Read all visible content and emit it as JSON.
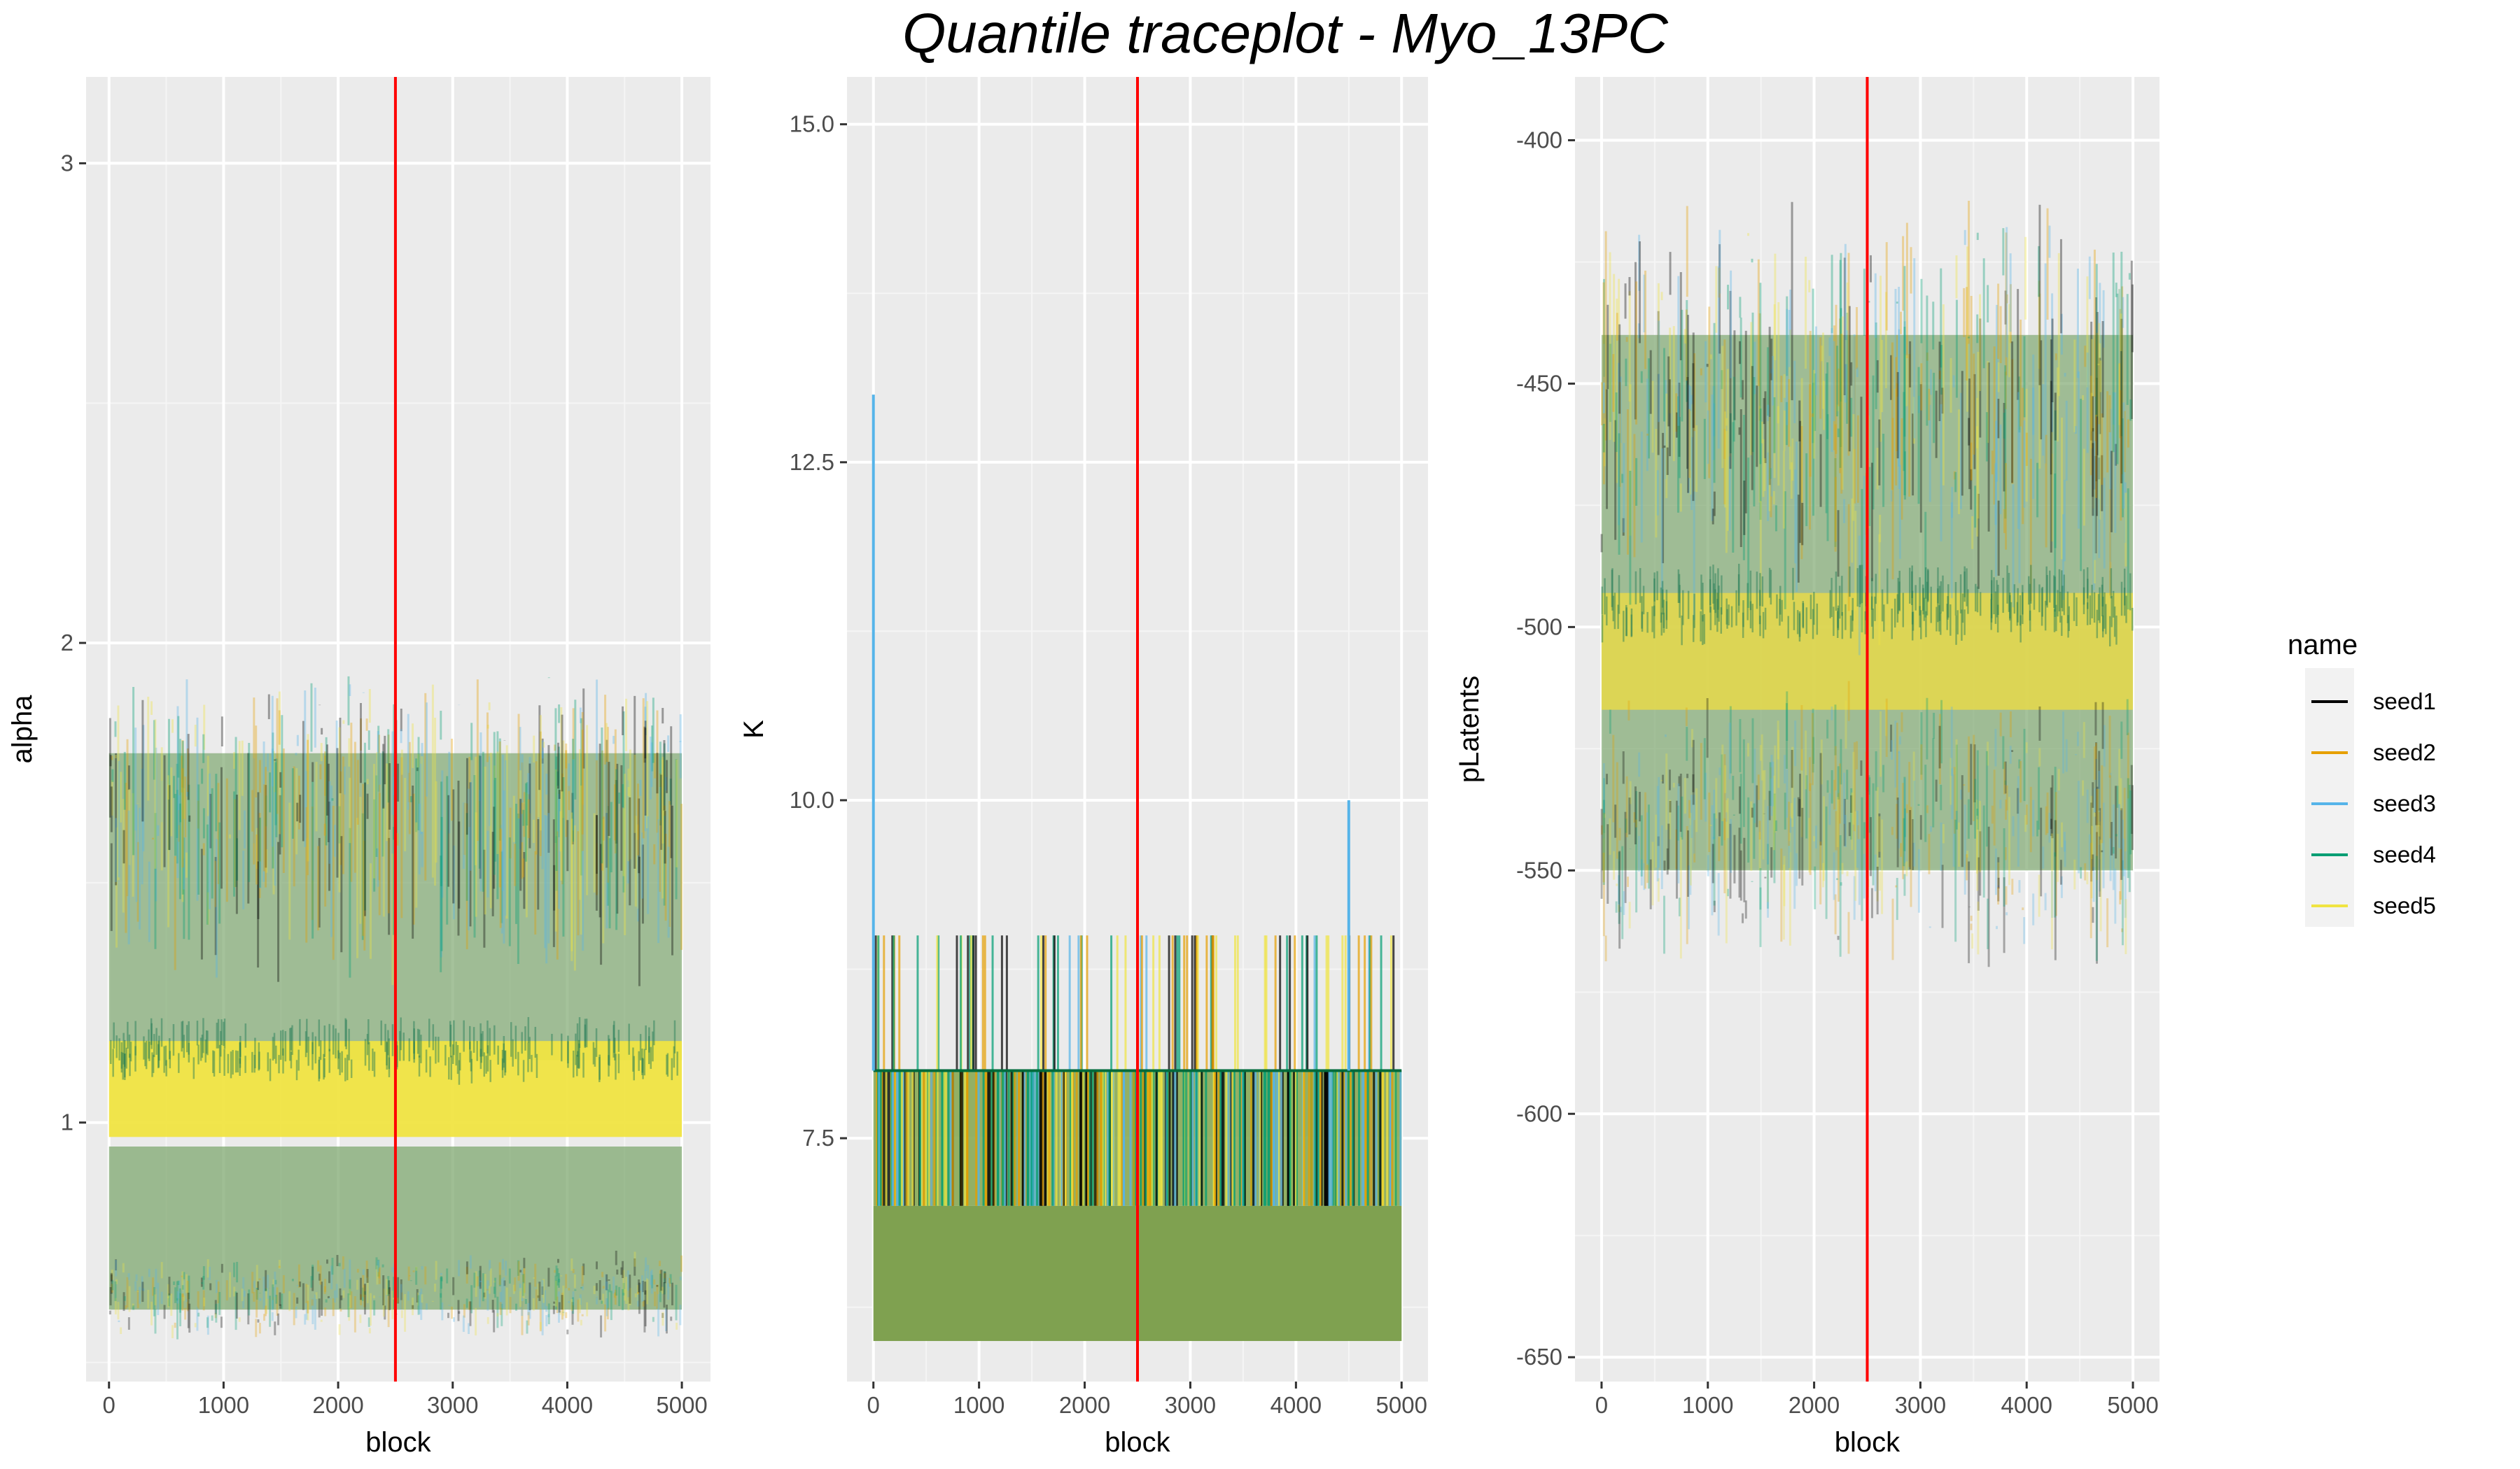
{
  "title": "Quantile traceplot - Myo_13PC",
  "chart_data": [
    {
      "type": "line",
      "xlabel": "block",
      "ylabel": "alpha",
      "xlim": [
        -200,
        5250
      ],
      "ylim": [
        0.46,
        3.18
      ],
      "xticks": [
        0,
        1000,
        2000,
        3000,
        4000,
        5000
      ],
      "yticks": [
        1,
        2,
        3
      ],
      "ytick_labels": [
        "1",
        "2",
        "3"
      ],
      "vline": 2500,
      "vline_color": "#ff0000",
      "grid": true,
      "quantile_bands": [
        {
          "center": 1.07,
          "spread": 0.1,
          "color": "#F0E442",
          "alpha": 0.95
        },
        {
          "center": 0.78,
          "spread": 0.17,
          "color": "#7fa870",
          "alpha": 0.75
        },
        {
          "center": 1.45,
          "spread": 0.32,
          "color": "#7fa870",
          "alpha": 0.7
        }
      ]
    },
    {
      "type": "line",
      "xlabel": "block",
      "ylabel": "K",
      "xlim": [
        -250,
        5250
      ],
      "ylim": [
        5.7,
        15.35
      ],
      "xticks": [
        0,
        1000,
        2000,
        3000,
        4000,
        5000
      ],
      "yticks": [
        7.5,
        10,
        12.5,
        15
      ],
      "ytick_labels": [
        "7.5",
        "10.0",
        "12.5",
        "15.0"
      ],
      "vline": 2500,
      "vline_color": "#ff0000",
      "grid": true,
      "quantile_bands": [
        {
          "from": 6,
          "to": 7,
          "color": "#7fa150",
          "alpha": 1.0
        },
        {
          "from": 7,
          "to": 8,
          "color": "#8aaa55",
          "alpha": 0.9
        }
      ],
      "spikes": [
        {
          "x": 0,
          "y": 13,
          "color": "#56B4E9"
        },
        {
          "x": 4500,
          "y": 10,
          "color": "#56B4E9"
        }
      ]
    },
    {
      "type": "line",
      "xlabel": "block",
      "ylabel": "pLatents",
      "xlim": [
        -250,
        5250
      ],
      "ylim": [
        -655,
        -387
      ],
      "xticks": [
        0,
        1000,
        2000,
        3000,
        4000,
        5000
      ],
      "yticks": [
        -650,
        -600,
        -550,
        -500,
        -450,
        -400
      ],
      "ytick_labels": [
        "-650",
        "-600",
        "-550",
        "-500",
        "-450",
        "-400"
      ],
      "vline": 2500,
      "vline_color": "#ff0000",
      "grid": true,
      "quantile_bands": [
        {
          "center": -505,
          "spread": 12,
          "color": "#e6d94a",
          "alpha": 0.85
        },
        {
          "center": -495,
          "spread": 55,
          "color": "#7fa870",
          "alpha": 0.7
        }
      ]
    }
  ],
  "legend": {
    "title": "name",
    "position": "right",
    "items": [
      {
        "label": "seed1",
        "color": "#000000"
      },
      {
        "label": "seed2",
        "color": "#E69F00"
      },
      {
        "label": "seed3",
        "color": "#56B4E9"
      },
      {
        "label": "seed4",
        "color": "#009E73"
      },
      {
        "label": "seed5",
        "color": "#F0E442"
      }
    ]
  }
}
